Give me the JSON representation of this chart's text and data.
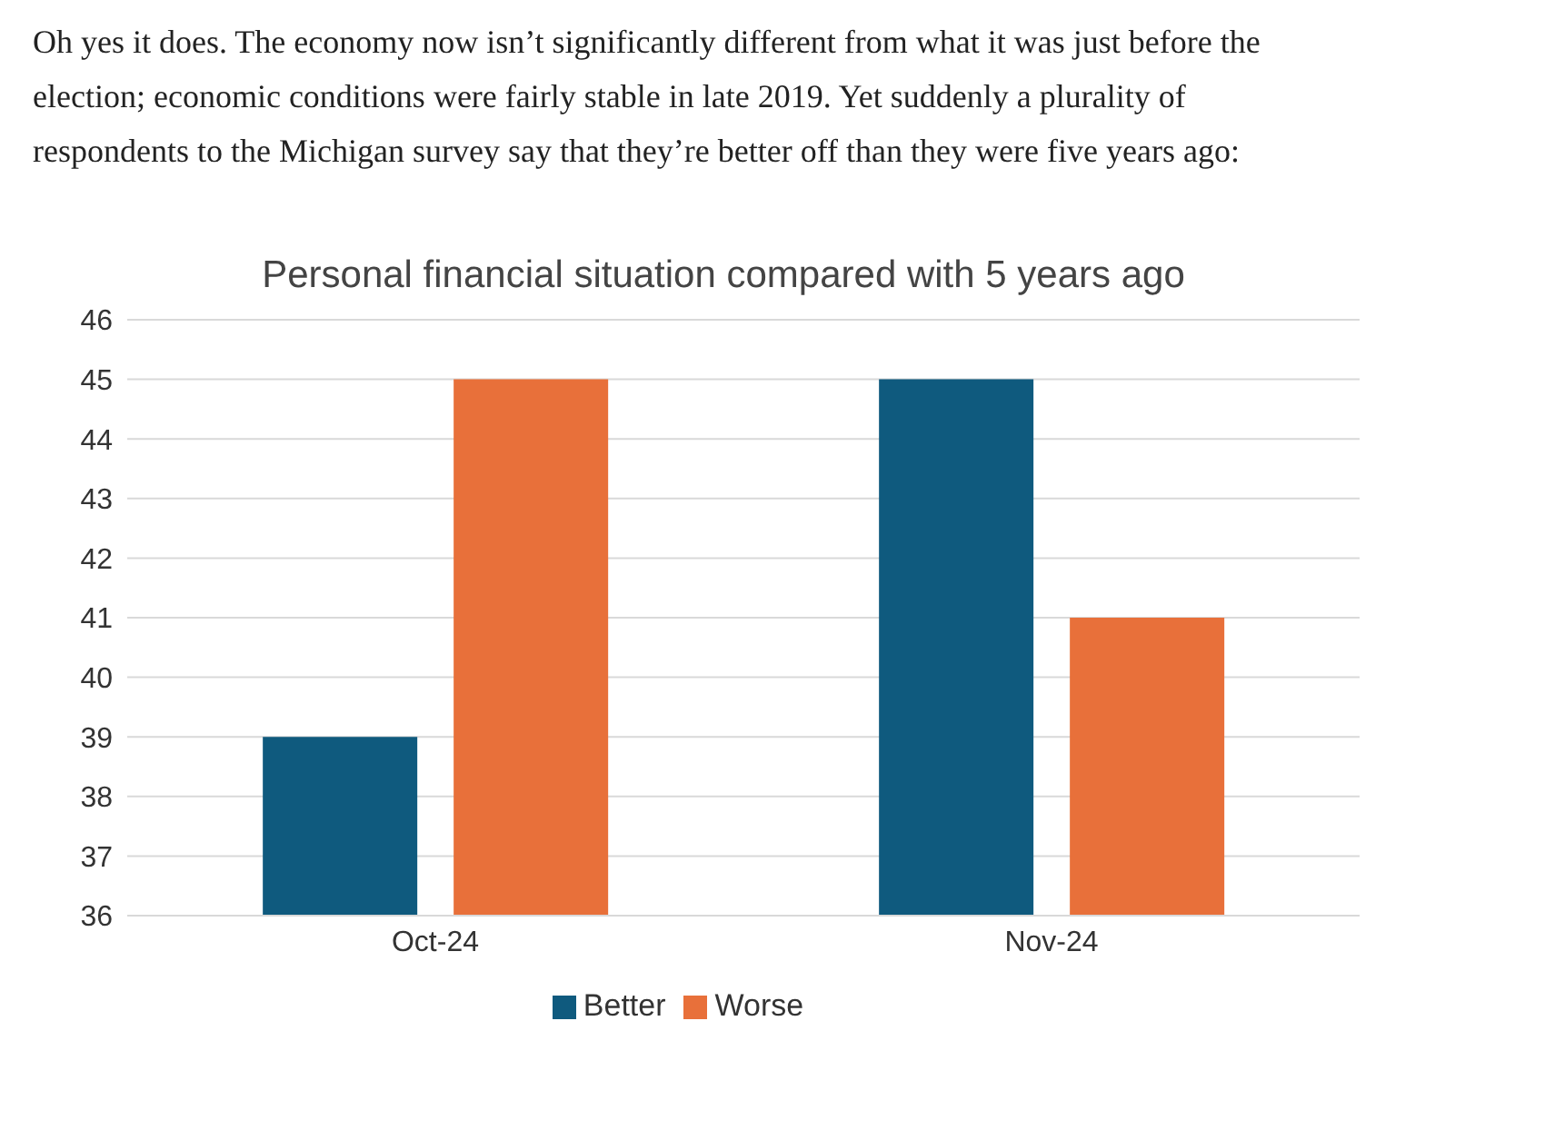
{
  "chart_data": {
    "type": "bar",
    "title": "Personal financial situation compared with 5 years ago",
    "annotations": [
      "Oh yes it does. The economy now isn’t significantly different from what it was just before the election; economic conditions were fairly stable in late 2019. Yet suddenly a plurality of respondents to the Michigan survey say that they’re better off than they were five years ago:"
    ],
    "categories": [
      "Oct-24",
      "Nov-24"
    ],
    "series": [
      {
        "name": "Better",
        "color": "#0f5a7e",
        "values": [
          39,
          45
        ]
      },
      {
        "name": "Worse",
        "color": "#e8703a",
        "values": [
          45,
          41
        ]
      }
    ],
    "ylim": [
      36,
      46
    ],
    "yticks": [
      36,
      37,
      38,
      39,
      40,
      41,
      42,
      43,
      44,
      45,
      46
    ],
    "grid": "y",
    "legend": "bottom"
  }
}
